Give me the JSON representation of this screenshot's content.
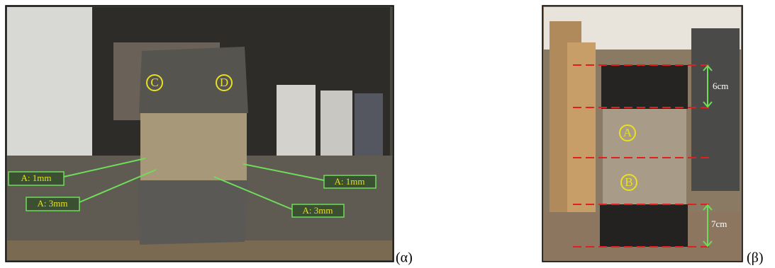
{
  "panels": [
    {
      "caption": "(α)",
      "circle_labels": [
        "C",
        "D"
      ],
      "callouts": [
        "A: 1mm",
        "A: 3mm",
        "A: 1mm",
        "A: 3mm"
      ]
    },
    {
      "caption": "(β)",
      "circle_labels": [
        "A",
        "B"
      ],
      "dimensions": [
        "6cm",
        "7cm"
      ]
    }
  ]
}
